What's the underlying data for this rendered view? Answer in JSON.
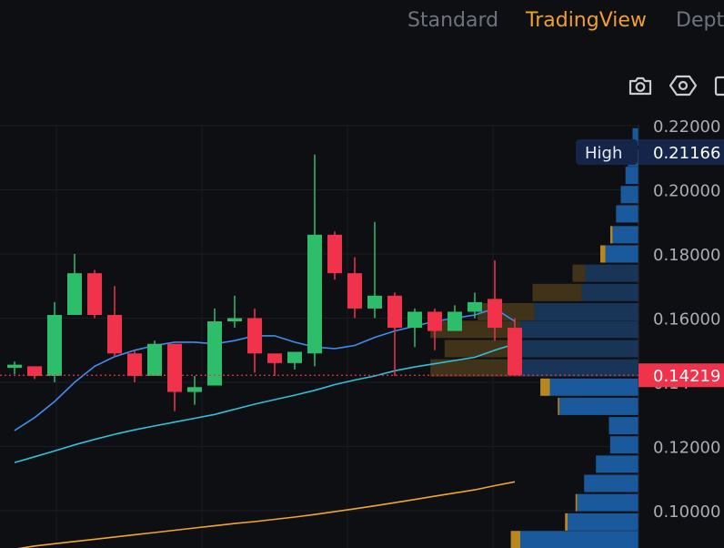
{
  "tabs": [
    {
      "label": "Standard",
      "active": false
    },
    {
      "label": "TradingView",
      "active": true
    },
    {
      "label": "Dept",
      "active": false
    }
  ],
  "toolbar_icons": [
    "camera-icon",
    "settings-icon",
    "save-icon"
  ],
  "colors": {
    "background": "#0e0f13",
    "up": "#2ebd6a",
    "down": "#f0334a",
    "ma_fast": "#3d8ef0",
    "ma_mid": "#2ec1d8",
    "ma_slow": "#f0a62a",
    "accent": "#f0a02a",
    "volume_buy": "#1a5a9c",
    "volume_sell": "#b8871f"
  },
  "chart_data": {
    "type": "candlestick",
    "ylim": [
      0.09,
      0.225
    ],
    "y_ticks": [
      "0.22000",
      "0.20000",
      "0.18000",
      "0.16000",
      "0.12000",
      "0.10000"
    ],
    "high_label": "High",
    "high_value": "0.21166",
    "last_price": "0.14219",
    "last_price_hidden": "0.14",
    "candles": [
      {
        "o": 0.1445,
        "h": 0.1465,
        "l": 0.1425,
        "c": 0.1455
      },
      {
        "o": 0.145,
        "h": 0.145,
        "l": 0.141,
        "c": 0.142
      },
      {
        "o": 0.142,
        "h": 0.165,
        "l": 0.14,
        "c": 0.161
      },
      {
        "o": 0.161,
        "h": 0.18,
        "l": 0.161,
        "c": 0.174
      },
      {
        "o": 0.174,
        "h": 0.175,
        "l": 0.16,
        "c": 0.161
      },
      {
        "o": 0.161,
        "h": 0.17,
        "l": 0.148,
        "c": 0.149
      },
      {
        "o": 0.149,
        "h": 0.15,
        "l": 0.14,
        "c": 0.142
      },
      {
        "o": 0.142,
        "h": 0.153,
        "l": 0.142,
        "c": 0.152
      },
      {
        "o": 0.152,
        "h": 0.152,
        "l": 0.131,
        "c": 0.137
      },
      {
        "o": 0.137,
        "h": 0.142,
        "l": 0.133,
        "c": 0.1385
      },
      {
        "o": 0.139,
        "h": 0.163,
        "l": 0.139,
        "c": 0.159
      },
      {
        "o": 0.159,
        "h": 0.167,
        "l": 0.157,
        "c": 0.16
      },
      {
        "o": 0.16,
        "h": 0.163,
        "l": 0.143,
        "c": 0.149
      },
      {
        "o": 0.149,
        "h": 0.148,
        "l": 0.142,
        "c": 0.146
      },
      {
        "o": 0.146,
        "h": 0.1495,
        "l": 0.144,
        "c": 0.1495
      },
      {
        "o": 0.149,
        "h": 0.211,
        "l": 0.145,
        "c": 0.186
      },
      {
        "o": 0.186,
        "h": 0.187,
        "l": 0.172,
        "c": 0.174
      },
      {
        "o": 0.174,
        "h": 0.179,
        "l": 0.16,
        "c": 0.163
      },
      {
        "o": 0.163,
        "h": 0.19,
        "l": 0.16,
        "c": 0.167
      },
      {
        "o": 0.167,
        "h": 0.168,
        "l": 0.142,
        "c": 0.157
      },
      {
        "o": 0.157,
        "h": 0.163,
        "l": 0.151,
        "c": 0.162
      },
      {
        "o": 0.162,
        "h": 0.163,
        "l": 0.15,
        "c": 0.156
      },
      {
        "o": 0.156,
        "h": 0.164,
        "l": 0.156,
        "c": 0.162
      },
      {
        "o": 0.162,
        "h": 0.168,
        "l": 0.16,
        "c": 0.165
      },
      {
        "o": 0.166,
        "h": 0.178,
        "l": 0.153,
        "c": 0.157
      },
      {
        "o": 0.157,
        "h": 0.16,
        "l": 0.142,
        "c": 0.1422
      }
    ],
    "ma_fast": [
      0.125,
      0.129,
      0.134,
      0.14,
      0.145,
      0.148,
      0.15,
      0.1515,
      0.1525,
      0.1525,
      0.152,
      0.153,
      0.1545,
      0.1545,
      0.1525,
      0.151,
      0.1505,
      0.1515,
      0.154,
      0.156,
      0.1575,
      0.159,
      0.16,
      0.161,
      0.163,
      0.159
    ],
    "ma_mid": [
      0.115,
      0.1168,
      0.1186,
      0.1205,
      0.1222,
      0.1238,
      0.1252,
      0.1264,
      0.1276,
      0.1288,
      0.13,
      0.1316,
      0.1332,
      0.1346,
      0.136,
      0.1375,
      0.1393,
      0.1407,
      0.142,
      0.1436,
      0.1448,
      0.1458,
      0.1468,
      0.1478,
      0.15,
      0.152
    ],
    "ma_slow": [
      0.088,
      0.089,
      0.0897,
      0.0904,
      0.0911,
      0.0918,
      0.0925,
      0.0932,
      0.0939,
      0.0946,
      0.0953,
      0.096,
      0.0966,
      0.0973,
      0.098,
      0.0988,
      0.0997,
      0.1006,
      0.1015,
      0.1025,
      0.1035,
      0.1045,
      0.1055,
      0.1065,
      0.1078,
      0.109
    ],
    "volume_profile": [
      {
        "p": 0.2165,
        "buy": 0.05,
        "sell": 0.0
      },
      {
        "p": 0.21,
        "buy": 0.09,
        "sell": 0.0
      },
      {
        "p": 0.2045,
        "buy": 0.11,
        "sell": 0.0
      },
      {
        "p": 0.1985,
        "buy": 0.15,
        "sell": 0.0
      },
      {
        "p": 0.1925,
        "buy": 0.19,
        "sell": 0.0
      },
      {
        "p": 0.186,
        "buy": 0.22,
        "sell": 0.06
      },
      {
        "p": 0.18,
        "buy": 0.28,
        "sell": 0.14
      },
      {
        "p": 0.174,
        "buy": 0.45,
        "sell": 0.35
      },
      {
        "p": 0.168,
        "buy": 0.48,
        "sell": 0.52
      },
      {
        "p": 0.162,
        "buy": 0.88,
        "sell": 0.6
      },
      {
        "p": 0.1565,
        "buy": 1.0,
        "sell": 0.95
      },
      {
        "p": 0.1505,
        "buy": 1.0,
        "sell": 0.8
      },
      {
        "p": 0.1445,
        "buy": 1.0,
        "sell": 0.95
      },
      {
        "p": 0.1385,
        "buy": 0.75,
        "sell": 0.26
      },
      {
        "p": 0.1325,
        "buy": 0.67,
        "sell": 0.04
      },
      {
        "p": 0.1265,
        "buy": 0.25,
        "sell": 0.0
      },
      {
        "p": 0.1205,
        "buy": 0.24,
        "sell": 0.0
      },
      {
        "p": 0.1145,
        "buy": 0.36,
        "sell": 0.0
      },
      {
        "p": 0.1085,
        "buy": 0.46,
        "sell": 0.0
      },
      {
        "p": 0.1025,
        "buy": 0.52,
        "sell": 0.04
      },
      {
        "p": 0.0965,
        "buy": 0.6,
        "sell": 0.07
      },
      {
        "p": 0.091,
        "buy": 1.0,
        "sell": 0.26
      }
    ]
  }
}
